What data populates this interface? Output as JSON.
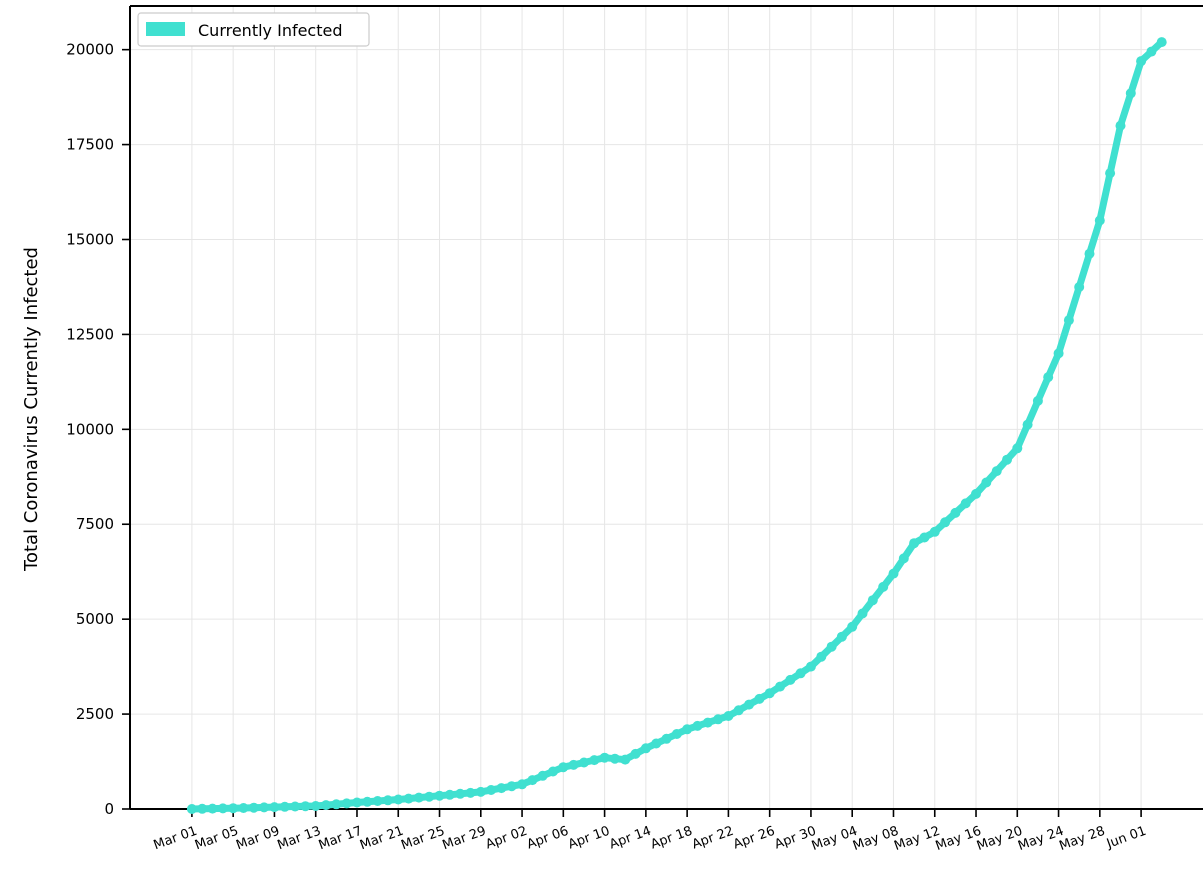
{
  "chart_data": {
    "type": "line",
    "title": "",
    "xlabel": "",
    "ylabel": "Total Coronavirus Currently Infected",
    "ylim": [
      0,
      21150
    ],
    "xlim": [
      "2020-02-24",
      "2020-06-07"
    ],
    "yticks": [
      0,
      2500,
      5000,
      7500,
      10000,
      12500,
      15000,
      17500,
      20000
    ],
    "xticks": [
      "2020-03-01",
      "2020-03-05",
      "2020-03-09",
      "2020-03-13",
      "2020-03-17",
      "2020-03-21",
      "2020-03-25",
      "2020-03-29",
      "2020-04-02",
      "2020-04-06",
      "2020-04-10",
      "2020-04-14",
      "2020-04-18",
      "2020-04-22",
      "2020-04-26",
      "2020-04-30",
      "2020-05-04",
      "2020-05-08",
      "2020-05-12",
      "2020-05-16",
      "2020-05-20",
      "2020-05-24",
      "2020-05-28",
      "2020-06-01"
    ],
    "xtick_labels": [
      "Mar 01",
      "Mar 05",
      "Mar 09",
      "Mar 13",
      "Mar 17",
      "Mar 21",
      "Mar 25",
      "Mar 29",
      "Apr 02",
      "Apr 06",
      "Apr 10",
      "Apr 14",
      "Apr 18",
      "Apr 22",
      "Apr 26",
      "Apr 30",
      "May 04",
      "May 08",
      "May 12",
      "May 16",
      "May 20",
      "May 24",
      "May 28",
      "Jun 01"
    ],
    "grid": true,
    "legend_position": "top-left",
    "series": [
      {
        "name": "Currently Infected",
        "color": "#40e0d0",
        "x": [
          "2020-03-01",
          "2020-03-05",
          "2020-03-09",
          "2020-03-13",
          "2020-03-17",
          "2020-03-21",
          "2020-03-25",
          "2020-03-29",
          "2020-04-02",
          "2020-04-06",
          "2020-04-10",
          "2020-04-12",
          "2020-04-14",
          "2020-04-18",
          "2020-04-22",
          "2020-04-26",
          "2020-04-30",
          "2020-05-04",
          "2020-05-08",
          "2020-05-10",
          "2020-05-12",
          "2020-05-16",
          "2020-05-20",
          "2020-05-24",
          "2020-05-28",
          "2020-05-30",
          "2020-06-01",
          "2020-06-03"
        ],
        "y": [
          0,
          20,
          50,
          80,
          170,
          250,
          350,
          450,
          650,
          1100,
          1350,
          1300,
          1600,
          2100,
          2450,
          3050,
          3750,
          4800,
          6200,
          7000,
          7300,
          8300,
          9500,
          12000,
          15500,
          18000,
          19700,
          20200
        ]
      }
    ]
  },
  "legend": {
    "label": "Currently Infected",
    "icon": "teal-swatch"
  }
}
